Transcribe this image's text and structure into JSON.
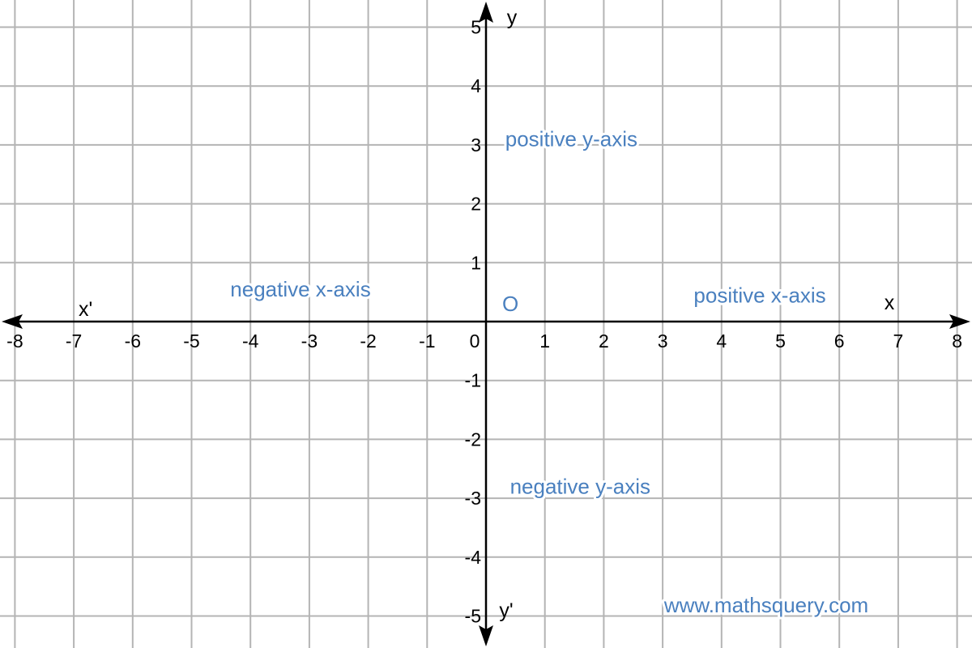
{
  "chart_data": {
    "type": "coordinate-plane",
    "xlim": [
      -8,
      8
    ],
    "ylim": [
      -5,
      5
    ],
    "grid": true,
    "x_ticks": [
      -8,
      -7,
      -6,
      -5,
      -4,
      -3,
      -2,
      -1,
      0,
      1,
      2,
      3,
      4,
      5,
      6,
      7,
      8
    ],
    "y_ticks": [
      -5,
      -4,
      -3,
      -2,
      -1,
      1,
      2,
      3,
      4,
      5
    ],
    "axis_names": {
      "x_positive": "x",
      "x_negative": "x'",
      "y_positive": "y",
      "y_negative": "y'"
    },
    "origin_label": "O",
    "annotations": [
      {
        "id": "positive-x-axis",
        "text": "positive x-axis",
        "x": 4.65,
        "y": 0.45
      },
      {
        "id": "negative-x-axis",
        "text": "negative x-axis",
        "x": -3.15,
        "y": 0.55
      },
      {
        "id": "positive-y-axis",
        "text": "positive y-axis",
        "x": 1.45,
        "y": 3.1
      },
      {
        "id": "negative-y-axis",
        "text": "negative y-axis",
        "x": 1.6,
        "y": -2.8
      }
    ],
    "watermark": "www.mathsquery.com",
    "colors": {
      "annotation": "#4a80bf",
      "grid": "#b4b4b4",
      "axis": "#000000"
    }
  }
}
